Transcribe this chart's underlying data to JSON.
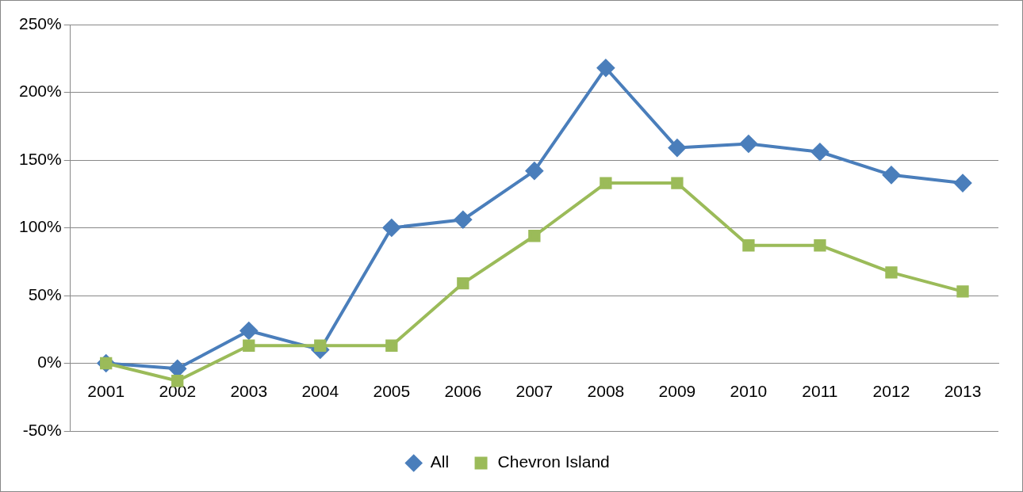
{
  "chart_data": {
    "type": "line",
    "categories": [
      "2001",
      "2002",
      "2003",
      "2004",
      "2005",
      "2006",
      "2007",
      "2008",
      "2009",
      "2010",
      "2011",
      "2012",
      "2013"
    ],
    "series": [
      {
        "name": "All",
        "color": "#4a7ebb",
        "marker": "diamond",
        "values": [
          0,
          -4,
          24,
          10,
          100,
          106,
          142,
          218,
          159,
          162,
          156,
          139,
          133
        ]
      },
      {
        "name": "Chevron Island",
        "color": "#9bbb59",
        "marker": "square",
        "values": [
          0,
          -13,
          13,
          13,
          13,
          59,
          94,
          133,
          133,
          87,
          87,
          67,
          53
        ]
      }
    ],
    "ylim": [
      -50,
      250
    ],
    "yticks": [
      {
        "value": -50,
        "label": "-50%"
      },
      {
        "value": 0,
        "label": "0%"
      },
      {
        "value": 50,
        "label": "50%"
      },
      {
        "value": 100,
        "label": "100%"
      },
      {
        "value": 150,
        "label": "150%"
      },
      {
        "value": 200,
        "label": "200%"
      },
      {
        "value": 250,
        "label": "250%"
      }
    ],
    "grid": "y",
    "legend": "bottom",
    "line_style": "solid"
  }
}
